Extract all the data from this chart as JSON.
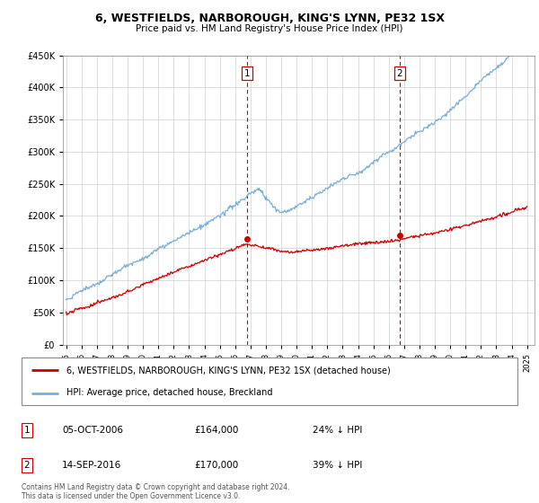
{
  "title": "6, WESTFIELDS, NARBOROUGH, KING'S LYNN, PE32 1SX",
  "subtitle": "Price paid vs. HM Land Registry's House Price Index (HPI)",
  "legend_line1": "6, WESTFIELDS, NARBOROUGH, KING'S LYNN, PE32 1SX (detached house)",
  "legend_line2": "HPI: Average price, detached house, Breckland",
  "annotation1_date": "05-OCT-2006",
  "annotation1_price": "£164,000",
  "annotation1_hpi": "24% ↓ HPI",
  "annotation2_date": "14-SEP-2016",
  "annotation2_price": "£170,000",
  "annotation2_hpi": "39% ↓ HPI",
  "footer": "Contains HM Land Registry data © Crown copyright and database right 2024.\nThis data is licensed under the Open Government Licence v3.0.",
  "sale1_year": 2006.76,
  "sale2_year": 2016.71,
  "sale1_price": 164000,
  "sale2_price": 170000,
  "red_color": "#cc0000",
  "blue_color": "#7aaed6",
  "dashed_color": "#cc0000",
  "ylim_min": 0,
  "ylim_max": 450000,
  "xlim_min": 1994.8,
  "xlim_max": 2025.5
}
